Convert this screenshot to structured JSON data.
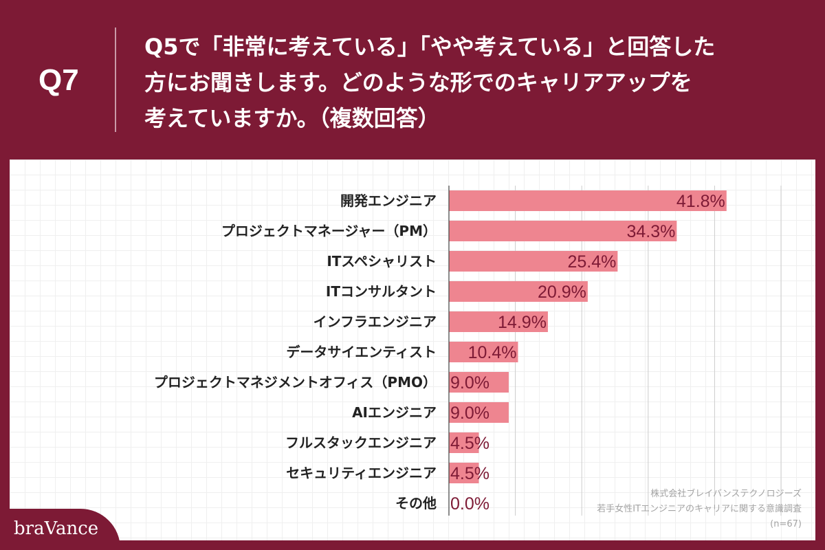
{
  "header": {
    "question_number": "Q7",
    "question_text": "Q5で「非常に考えている」「やや考えている」と回答した\n方にお聞きします。どのような形でのキャリアアップを\n考えていますか。（複数回答）"
  },
  "colors": {
    "background": "#7d1a35",
    "bar": "#ee8590",
    "value_text": "#7d1a35",
    "category_text": "#222222"
  },
  "chart_data": {
    "type": "bar",
    "orientation": "horizontal",
    "categories": [
      "開発エンジニア",
      "プロジェクトマネージャー（PM）",
      "ITスペシャリスト",
      "ITコンサルタント",
      "インフラエンジニア",
      "データサイエンティスト",
      "プロジェクトマネジメントオフィス（PMO）",
      "AIエンジニア",
      "フルスタックエンジニア",
      "セキュリティエンジニア",
      "その他"
    ],
    "values": [
      41.8,
      34.3,
      25.4,
      20.9,
      14.9,
      10.4,
      9.0,
      9.0,
      4.5,
      4.5,
      0.0
    ],
    "value_labels": [
      "41.8%",
      "34.3%",
      "25.4%",
      "20.9%",
      "14.9%",
      "10.4%",
      "9.0%",
      "9.0%",
      "4.5%",
      "4.5%",
      "0.0%"
    ],
    "xlim": [
      0,
      50
    ],
    "grid": true
  },
  "source": {
    "company": "株式会社ブレイバンステクノロジーズ",
    "survey": "若手女性ITエンジニアのキャリアに関する意識調査",
    "n": "(n=67)"
  },
  "brand": {
    "name": "braVance"
  }
}
